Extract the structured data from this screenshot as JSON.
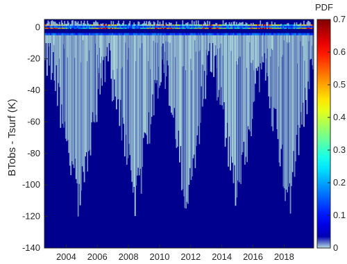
{
  "chart_data": {
    "type": "heatmap",
    "title": "",
    "xlabel": "",
    "ylabel": "BTobs - Tsurf (K)",
    "x_tick_labels": [
      "2004",
      "2006",
      "2008",
      "2010",
      "2012",
      "2014",
      "2016",
      "2018"
    ],
    "x_ticks": [
      2004,
      2006,
      2008,
      2010,
      2012,
      2014,
      2016,
      2018
    ],
    "xlim": [
      2002.6,
      2019.9
    ],
    "y_tick_labels": [
      "0",
      "-20",
      "-40",
      "-60",
      "-80",
      "-100",
      "-120",
      "-140"
    ],
    "y_ticks": [
      0,
      -20,
      -40,
      -60,
      -80,
      -100,
      -120,
      -140
    ],
    "ylim": [
      -140,
      5
    ],
    "colorbar": {
      "label": "PDF",
      "colormap": "jet",
      "range": [
        0,
        0.7
      ],
      "tick_labels": [
        "0",
        "0.1",
        "0.2",
        "0.3",
        "0.4",
        "0.5",
        "0.6",
        "0.7"
      ],
      "ticks": [
        0,
        0.1,
        0.2,
        0.3,
        0.4,
        0.5,
        0.6,
        0.7
      ]
    },
    "peak_band": {
      "y_center": -2,
      "y_range": [
        -5,
        1
      ],
      "max_pdf": 0.7
    },
    "low_deficit_periods": [
      2004.8,
      2008.5,
      2011.7,
      2015.0,
      2018.3
    ],
    "high_deficit_periods": [
      2002.9,
      2006.6,
      2010.2,
      2013.3,
      2016.6,
      2019.9
    ],
    "min_extent_range": [
      -110,
      -15
    ],
    "description_values": {
      "background_pdf": 0.0,
      "spread_pdf": 0.08
    }
  },
  "colors": {
    "background_fill": "#00008f",
    "spread_fill": "#a9d6d8",
    "axis": "#262626"
  }
}
